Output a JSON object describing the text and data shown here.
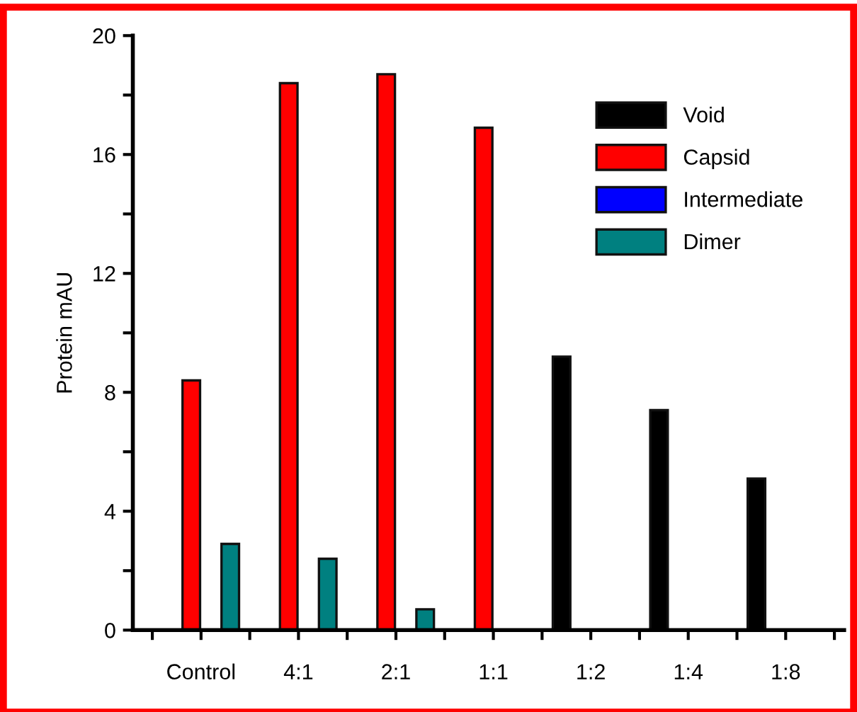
{
  "chart_data": {
    "type": "bar",
    "ylabel": "Protein mAU",
    "categories": [
      "Control",
      "4:1",
      "2:1",
      "1:1",
      "1:2",
      "1:4",
      "1:8"
    ],
    "series": [
      {
        "name": "Void",
        "color": "#000000",
        "values": [
          null,
          null,
          null,
          null,
          9.2,
          7.4,
          5.1
        ]
      },
      {
        "name": "Capsid",
        "color": "#ff0000",
        "values": [
          8.4,
          18.4,
          18.7,
          16.9,
          null,
          null,
          null
        ]
      },
      {
        "name": "Intermediate",
        "color": "#0000ff",
        "values": [
          null,
          null,
          null,
          null,
          null,
          null,
          null
        ]
      },
      {
        "name": "Dimer",
        "color": "#008080",
        "values": [
          2.9,
          2.4,
          0.7,
          null,
          null,
          null,
          null
        ]
      }
    ],
    "ylim": [
      0,
      20
    ],
    "yticks": [
      0,
      {
        "value": 2,
        "label": null
      },
      4,
      {
        "value": 6,
        "label": null
      },
      8,
      {
        "value": 10,
        "label": null
      },
      12,
      {
        "value": 14,
        "label": null
      },
      16,
      {
        "value": 18,
        "label": null
      },
      20
    ],
    "grid": false,
    "legend": "top right"
  }
}
